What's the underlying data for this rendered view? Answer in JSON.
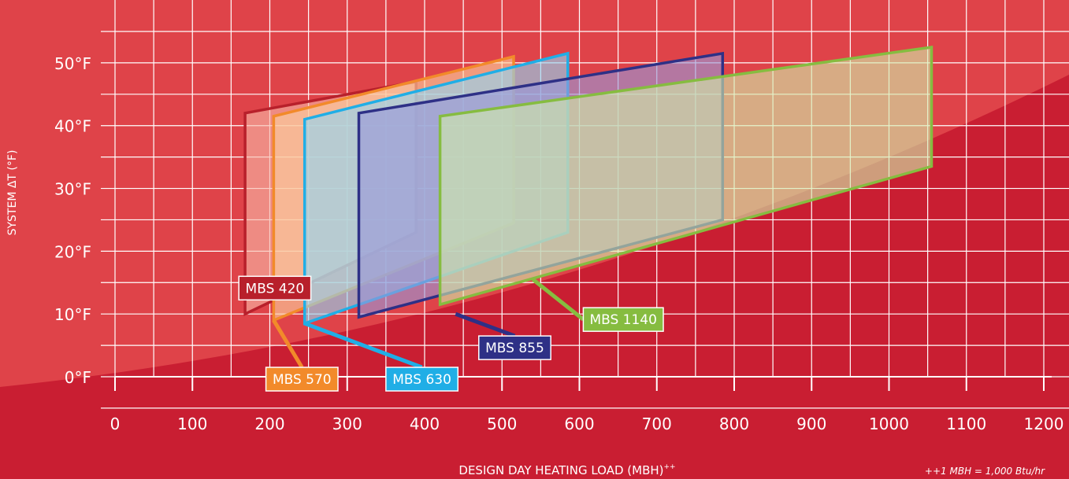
{
  "chart_data": {
    "type": "area",
    "title": "",
    "xlabel": "DESIGN DAY HEATING LOAD (MBH)",
    "xlabel_superscript": "++",
    "ylabel": "SYSTEM  ΔT (°F)",
    "footnote": "++1 MBH = 1,000 Btu/hr",
    "xlim": [
      0,
      1200
    ],
    "ylim": [
      0,
      55
    ],
    "x_ticks": [
      0,
      100,
      200,
      300,
      400,
      500,
      600,
      700,
      800,
      900,
      1000,
      1100,
      1200
    ],
    "x_tick_labels": [
      "0",
      "100",
      "200",
      "300",
      "400",
      "500",
      "600",
      "700",
      "800",
      "900",
      "1000",
      "1100",
      "1200"
    ],
    "y_ticks": [
      0,
      10,
      20,
      30,
      40,
      50
    ],
    "y_tick_labels": [
      "0°F",
      "10°F",
      "20°F",
      "30°F",
      "40°F",
      "50°F"
    ],
    "grid": true,
    "series": [
      {
        "name": "MBS 420",
        "color": "#b8202b",
        "fill": "#f7b8a8",
        "polygon": [
          [
            168,
            10
          ],
          [
            168,
            42
          ],
          [
            389,
            47
          ],
          [
            389,
            23
          ]
        ]
      },
      {
        "name": "MBS 570",
        "color": "#f28a2a",
        "fill": "#fbd2a0",
        "polygon": [
          [
            205,
            9
          ],
          [
            205,
            41.5
          ],
          [
            515,
            51
          ],
          [
            515,
            24.5
          ]
        ]
      },
      {
        "name": "MBS 630",
        "color": "#20aee6",
        "fill": "#8fd7f5",
        "polygon": [
          [
            245,
            8.5
          ],
          [
            245,
            41
          ],
          [
            585,
            51.5
          ],
          [
            585,
            23
          ]
        ]
      },
      {
        "name": "MBS 855",
        "color": "#2e3086",
        "fill": "#9a98d8",
        "polygon": [
          [
            315,
            9.5
          ],
          [
            315,
            42
          ],
          [
            785,
            51.5
          ],
          [
            785,
            25
          ]
        ]
      },
      {
        "name": "MBS 1140",
        "color": "#86bc40",
        "fill": "#d2ecaa",
        "polygon": [
          [
            420,
            11.5
          ],
          [
            420,
            41.5
          ],
          [
            1055,
            52.5
          ],
          [
            1055,
            33.5
          ]
        ]
      }
    ],
    "labels": [
      {
        "text": "MBS 420",
        "series": "MBS 420",
        "anchor": [
          160,
          16
        ],
        "bg": "#b8202b"
      },
      {
        "text": "MBS 570",
        "series": "MBS 570",
        "anchor": [
          195,
          1.5
        ],
        "bg": "#f28a2a"
      },
      {
        "text": "MBS 630",
        "series": "MBS 630",
        "anchor": [
          350,
          1.5
        ],
        "bg": "#20aee6"
      },
      {
        "text": "MBS 855",
        "series": "MBS 855",
        "anchor": [
          470,
          6.5
        ],
        "bg": "#2e3086"
      },
      {
        "text": "MBS 1140",
        "series": "MBS 1140",
        "anchor": [
          605,
          11
        ],
        "bg": "#86bc40"
      }
    ],
    "colors": {
      "background": "#c91e32",
      "plot_background": "#dc3a43",
      "grid": "#ffffff",
      "text": "#ffffff"
    }
  }
}
